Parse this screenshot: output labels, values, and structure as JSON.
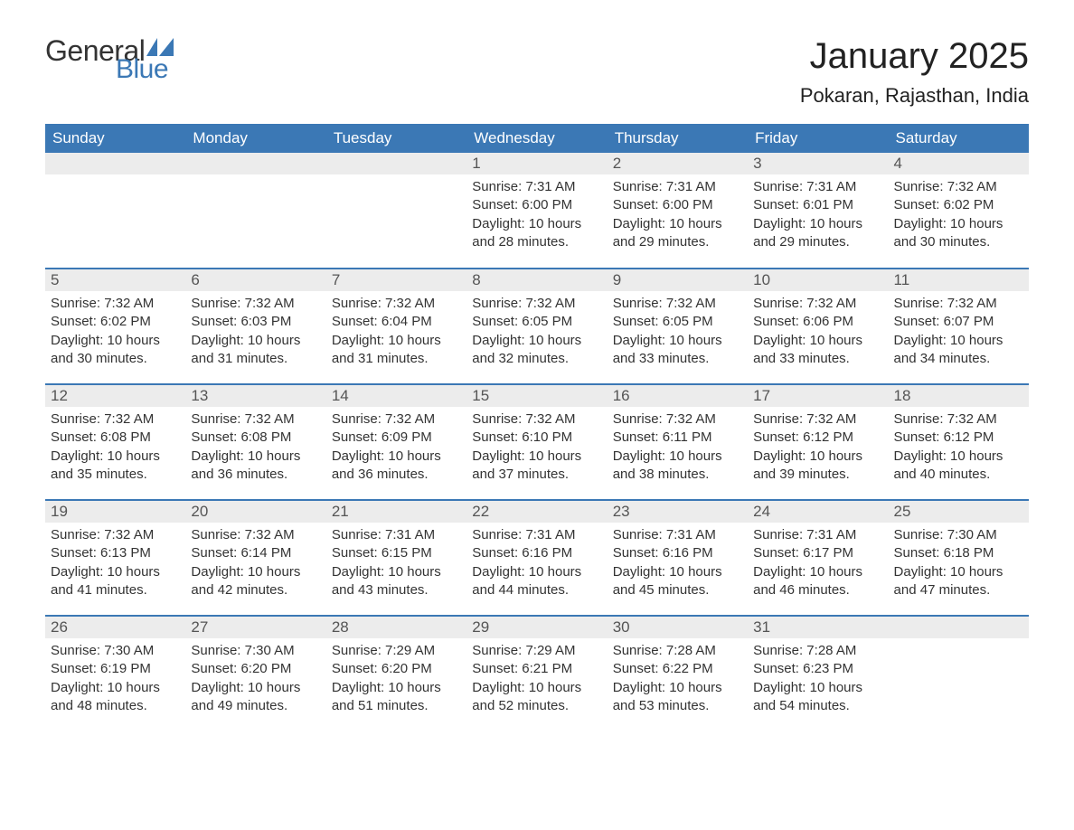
{
  "brand": {
    "general": "General",
    "blue": "Blue",
    "flag_color": "#3b78b5"
  },
  "title": "January 2025",
  "location": "Pokaran, Rajasthan, India",
  "colors": {
    "header_bg": "#3b78b5",
    "header_text": "#ffffff",
    "daynum_bg": "#ececec",
    "daynum_text": "#555555",
    "body_text": "#333333",
    "row_border": "#3b78b5",
    "page_bg": "#ffffff"
  },
  "typography": {
    "title_fontsize": 40,
    "location_fontsize": 22,
    "header_fontsize": 17,
    "daynum_fontsize": 17,
    "body_fontsize": 15
  },
  "weekdays": [
    "Sunday",
    "Monday",
    "Tuesday",
    "Wednesday",
    "Thursday",
    "Friday",
    "Saturday"
  ],
  "labels": {
    "sunrise": "Sunrise:",
    "sunset": "Sunset:",
    "daylight": "Daylight:"
  },
  "weeks": [
    [
      null,
      null,
      null,
      {
        "n": "1",
        "sunrise": "7:31 AM",
        "sunset": "6:00 PM",
        "daylight": "10 hours and 28 minutes."
      },
      {
        "n": "2",
        "sunrise": "7:31 AM",
        "sunset": "6:00 PM",
        "daylight": "10 hours and 29 minutes."
      },
      {
        "n": "3",
        "sunrise": "7:31 AM",
        "sunset": "6:01 PM",
        "daylight": "10 hours and 29 minutes."
      },
      {
        "n": "4",
        "sunrise": "7:32 AM",
        "sunset": "6:02 PM",
        "daylight": "10 hours and 30 minutes."
      }
    ],
    [
      {
        "n": "5",
        "sunrise": "7:32 AM",
        "sunset": "6:02 PM",
        "daylight": "10 hours and 30 minutes."
      },
      {
        "n": "6",
        "sunrise": "7:32 AM",
        "sunset": "6:03 PM",
        "daylight": "10 hours and 31 minutes."
      },
      {
        "n": "7",
        "sunrise": "7:32 AM",
        "sunset": "6:04 PM",
        "daylight": "10 hours and 31 minutes."
      },
      {
        "n": "8",
        "sunrise": "7:32 AM",
        "sunset": "6:05 PM",
        "daylight": "10 hours and 32 minutes."
      },
      {
        "n": "9",
        "sunrise": "7:32 AM",
        "sunset": "6:05 PM",
        "daylight": "10 hours and 33 minutes."
      },
      {
        "n": "10",
        "sunrise": "7:32 AM",
        "sunset": "6:06 PM",
        "daylight": "10 hours and 33 minutes."
      },
      {
        "n": "11",
        "sunrise": "7:32 AM",
        "sunset": "6:07 PM",
        "daylight": "10 hours and 34 minutes."
      }
    ],
    [
      {
        "n": "12",
        "sunrise": "7:32 AM",
        "sunset": "6:08 PM",
        "daylight": "10 hours and 35 minutes."
      },
      {
        "n": "13",
        "sunrise": "7:32 AM",
        "sunset": "6:08 PM",
        "daylight": "10 hours and 36 minutes."
      },
      {
        "n": "14",
        "sunrise": "7:32 AM",
        "sunset": "6:09 PM",
        "daylight": "10 hours and 36 minutes."
      },
      {
        "n": "15",
        "sunrise": "7:32 AM",
        "sunset": "6:10 PM",
        "daylight": "10 hours and 37 minutes."
      },
      {
        "n": "16",
        "sunrise": "7:32 AM",
        "sunset": "6:11 PM",
        "daylight": "10 hours and 38 minutes."
      },
      {
        "n": "17",
        "sunrise": "7:32 AM",
        "sunset": "6:12 PM",
        "daylight": "10 hours and 39 minutes."
      },
      {
        "n": "18",
        "sunrise": "7:32 AM",
        "sunset": "6:12 PM",
        "daylight": "10 hours and 40 minutes."
      }
    ],
    [
      {
        "n": "19",
        "sunrise": "7:32 AM",
        "sunset": "6:13 PM",
        "daylight": "10 hours and 41 minutes."
      },
      {
        "n": "20",
        "sunrise": "7:32 AM",
        "sunset": "6:14 PM",
        "daylight": "10 hours and 42 minutes."
      },
      {
        "n": "21",
        "sunrise": "7:31 AM",
        "sunset": "6:15 PM",
        "daylight": "10 hours and 43 minutes."
      },
      {
        "n": "22",
        "sunrise": "7:31 AM",
        "sunset": "6:16 PM",
        "daylight": "10 hours and 44 minutes."
      },
      {
        "n": "23",
        "sunrise": "7:31 AM",
        "sunset": "6:16 PM",
        "daylight": "10 hours and 45 minutes."
      },
      {
        "n": "24",
        "sunrise": "7:31 AM",
        "sunset": "6:17 PM",
        "daylight": "10 hours and 46 minutes."
      },
      {
        "n": "25",
        "sunrise": "7:30 AM",
        "sunset": "6:18 PM",
        "daylight": "10 hours and 47 minutes."
      }
    ],
    [
      {
        "n": "26",
        "sunrise": "7:30 AM",
        "sunset": "6:19 PM",
        "daylight": "10 hours and 48 minutes."
      },
      {
        "n": "27",
        "sunrise": "7:30 AM",
        "sunset": "6:20 PM",
        "daylight": "10 hours and 49 minutes."
      },
      {
        "n": "28",
        "sunrise": "7:29 AM",
        "sunset": "6:20 PM",
        "daylight": "10 hours and 51 minutes."
      },
      {
        "n": "29",
        "sunrise": "7:29 AM",
        "sunset": "6:21 PM",
        "daylight": "10 hours and 52 minutes."
      },
      {
        "n": "30",
        "sunrise": "7:28 AM",
        "sunset": "6:22 PM",
        "daylight": "10 hours and 53 minutes."
      },
      {
        "n": "31",
        "sunrise": "7:28 AM",
        "sunset": "6:23 PM",
        "daylight": "10 hours and 54 minutes."
      },
      null
    ]
  ]
}
